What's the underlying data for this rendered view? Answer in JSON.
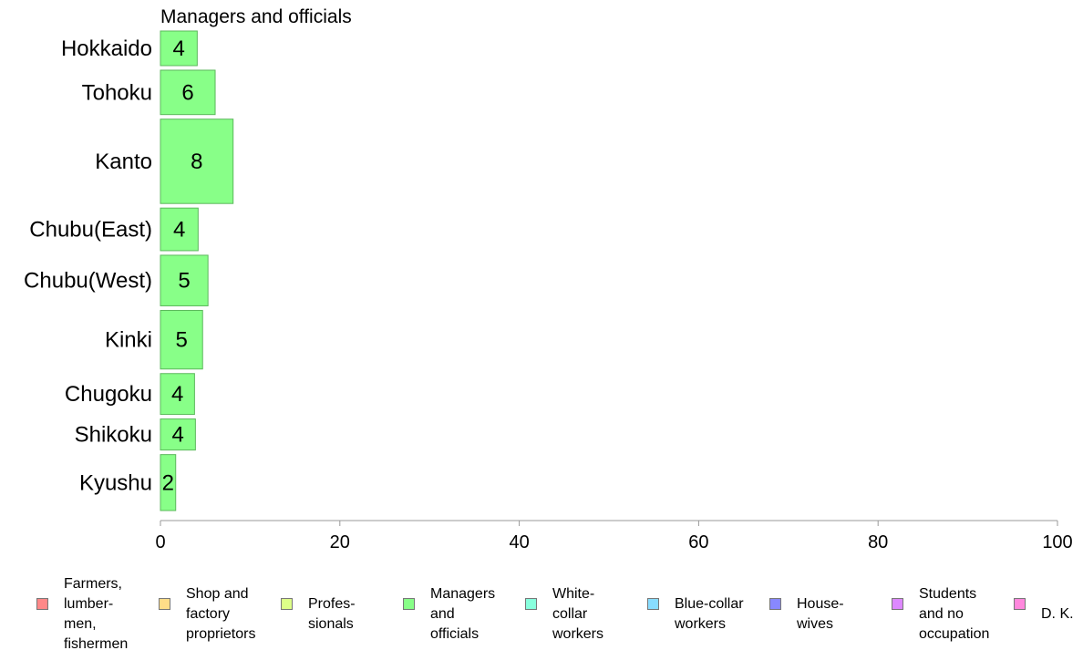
{
  "chart_data": {
    "type": "bar",
    "orientation": "horizontal",
    "title": "Managers and officials",
    "categories": [
      "Hokkaido",
      "Tohoku",
      "Kanto",
      "Chubu(East)",
      "Chubu(West)",
      "Kinki",
      "Chugoku",
      "Shikoku",
      "Kyushu"
    ],
    "values": [
      4.1,
      6.1,
      8.1,
      4.2,
      5.3,
      4.7,
      3.8,
      3.9,
      1.7
    ],
    "value_labels": [
      "4",
      "6",
      "8",
      "4",
      "5",
      "5",
      "4",
      "4",
      "2"
    ],
    "relative_weights": [
      3.9,
      5.0,
      9.5,
      4.8,
      5.7,
      6.6,
      4.6,
      3.5,
      6.3
    ],
    "xlim": [
      0,
      100
    ],
    "xticks": [
      "0",
      "20",
      "40",
      "60",
      "80",
      "100"
    ],
    "bar_color": "#88ff88",
    "bar_stroke": "#5cb85c",
    "axis_color": "#999999",
    "legend": [
      {
        "label": "Farmers,\nlumber-\nmen,\nfishermen",
        "color": "#ff8888"
      },
      {
        "label": "Shop and\nfactory\nproprietors",
        "color": "#ffdd88"
      },
      {
        "label": "Profes-\nsionals",
        "color": "#ddff88"
      },
      {
        "label": "Managers\nand\nofficials",
        "color": "#88ff88"
      },
      {
        "label": "White-\ncollar\nworkers",
        "color": "#88ffdd"
      },
      {
        "label": "Blue-collar\nworkers",
        "color": "#88ddff"
      },
      {
        "label": "House-\nwives",
        "color": "#8888ff"
      },
      {
        "label": "Students\nand no\noccupation",
        "color": "#dd88ff"
      },
      {
        "label": "D. K.",
        "color": "#ff88dd"
      }
    ],
    "legend_position": "bottom"
  }
}
